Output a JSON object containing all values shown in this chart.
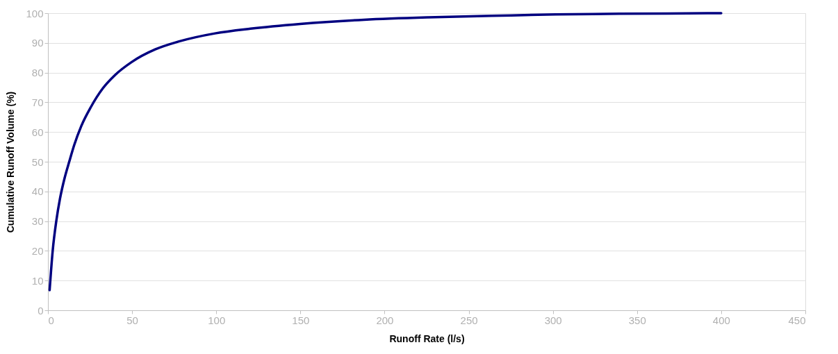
{
  "chart_data": {
    "type": "line",
    "xlabel": "Runoff Rate (l/s)",
    "ylabel": "Cumulative Runoff Volume (%)",
    "x": [
      1,
      2.8,
      5,
      7.1,
      9.9,
      12.7,
      15.6,
      19.8,
      25.5,
      32.6,
      39.7,
      49.6,
      63.7,
      77.9,
      99.2,
      120.4,
      149.9,
      187.8,
      225.8,
      263.6,
      301.5,
      339.6,
      400
    ],
    "series": [
      {
        "color": "#000080",
        "values": [
          6.8,
          19.9,
          30.2,
          37.4,
          44.5,
          50.1,
          55.6,
          62.0,
          68.4,
          74.7,
          79.1,
          83.5,
          87.8,
          90.5,
          93.2,
          94.8,
          96.4,
          97.8,
          98.6,
          99.1,
          99.6,
          99.8,
          100
        ]
      }
    ],
    "xlim": [
      0,
      450
    ],
    "xticks": [
      0,
      50,
      100,
      150,
      200,
      250,
      300,
      350,
      400,
      450
    ],
    "ylim": [
      0,
      100
    ],
    "yticks": [
      0,
      10,
      20,
      30,
      40,
      50,
      60,
      70,
      80,
      90,
      100
    ],
    "grid": "y",
    "marker": "none",
    "line_style": "solid"
  }
}
